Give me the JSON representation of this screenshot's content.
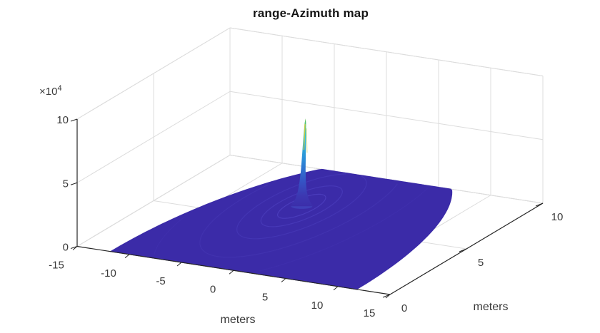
{
  "chart_data": {
    "type": "surface",
    "title": "range-Azimuth map",
    "view": "matlab-default-3d",
    "grid": true,
    "background_color": "#ffffff",
    "axis_color": "#262626",
    "grid_color": "#dcdcdc",
    "text_color": "#3a3a3a",
    "x_axis": {
      "label": "meters",
      "min": -15,
      "max": 15,
      "ticks": [
        -15,
        -10,
        -5,
        0,
        5,
        10,
        15
      ],
      "tick_labels": [
        "-15",
        "-10",
        "-5",
        "0",
        "5",
        "10",
        "15"
      ]
    },
    "y_axis": {
      "label": "meters",
      "min": 0,
      "max": 10,
      "ticks": [
        0,
        5,
        10
      ],
      "tick_labels": [
        "0",
        "5",
        "10"
      ]
    },
    "z_axis": {
      "multiplier_base": "×10",
      "multiplier_exponent": "4",
      "min": 0,
      "max": 100000,
      "ticks": [
        0,
        50000,
        100000
      ],
      "tick_labels": [
        "0",
        "5",
        "10"
      ]
    },
    "surface": {
      "shape": "half_disk_dome",
      "center": {
        "azimuth_m": 0,
        "range_m": 0
      },
      "radius_m": 11.8,
      "base_color": "#3b2ba8",
      "peak": {
        "azimuth_m": -3,
        "range_m": 6.5,
        "value": 69000
      },
      "ripples": {
        "radii_m": [
          1.3,
          2.2,
          3.5,
          5.5,
          8
        ],
        "opacities": [
          0.5,
          0.38,
          0.28,
          0.2,
          0.12
        ],
        "color": "#5a4ecf"
      },
      "base_glow_color": "#4553c8",
      "spike_highlight_color": "#d6ce3a",
      "spike_gradient": [
        {
          "offset": 0.0,
          "color": "#62c04a"
        },
        {
          "offset": 0.1,
          "color": "#3fc39b"
        },
        {
          "offset": 0.22,
          "color": "#2fbdd6"
        },
        {
          "offset": 0.45,
          "color": "#2b8ed8"
        },
        {
          "offset": 0.68,
          "color": "#3456c6"
        },
        {
          "offset": 0.85,
          "color": "#3c38b2"
        },
        {
          "offset": 1.0,
          "color": "#3b2ba8"
        }
      ]
    }
  }
}
